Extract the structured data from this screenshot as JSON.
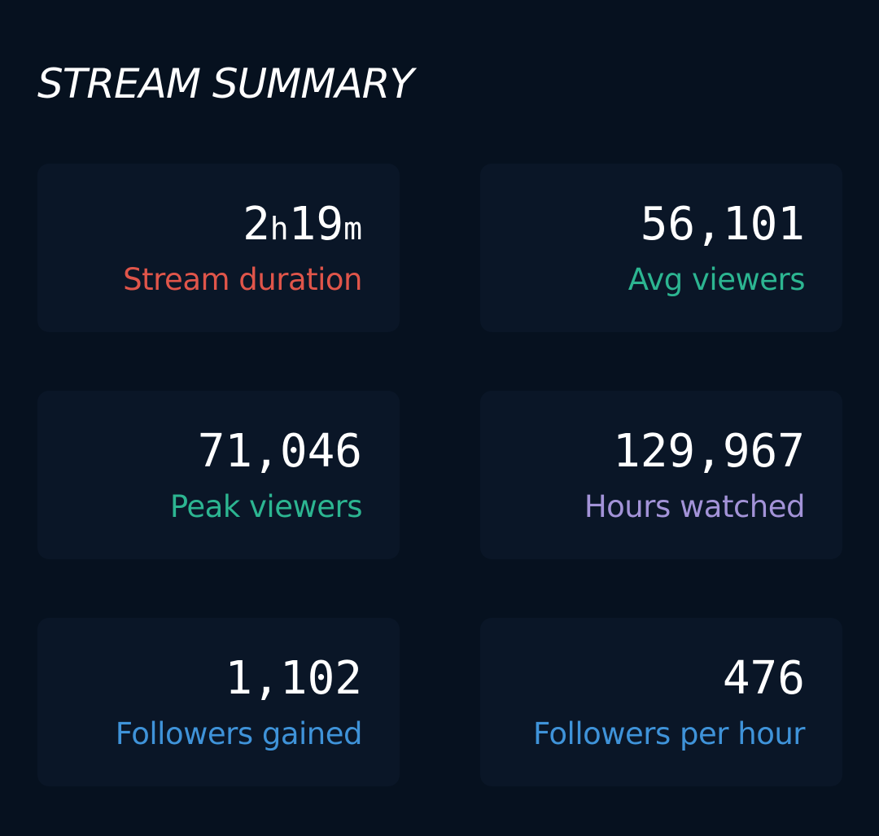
{
  "header": {
    "title": "STREAM SUMMARY"
  },
  "stats": {
    "duration": {
      "hours": "2",
      "hours_unit": "h",
      "minutes": "19",
      "minutes_unit": "m",
      "label": "Stream duration",
      "color": "#e0554a"
    },
    "avg_viewers": {
      "value": "56,101",
      "label": "Avg viewers",
      "color": "#2cb591"
    },
    "peak_viewers": {
      "value": "71,046",
      "label": "Peak viewers",
      "color": "#2cb591"
    },
    "hours_watched": {
      "value": "129,967",
      "label": "Hours watched",
      "color": "#a393d8"
    },
    "followers_gained": {
      "value": "1,102",
      "label": "Followers gained",
      "color": "#3f93d9"
    },
    "followers_per_hour": {
      "value": "476",
      "label": "Followers per hour",
      "color": "#3f93d9"
    }
  },
  "colors": {
    "background": "#06111f",
    "card": "#0a1627",
    "value_text": "#ffffff"
  }
}
